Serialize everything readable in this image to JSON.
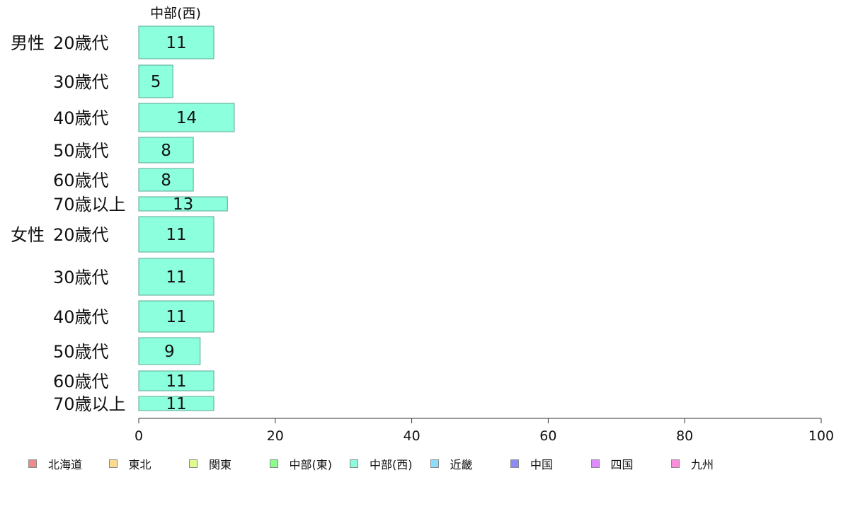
{
  "chart_data": {
    "type": "bar",
    "orientation": "horizontal",
    "title": "中部(西)",
    "xlim": [
      0,
      100
    ],
    "xticks": [
      "0",
      "20",
      "40",
      "60",
      "80",
      "100"
    ],
    "grid": false,
    "legend_position": "bottom",
    "groups": [
      {
        "label": "男性",
        "categories": [
          "20歳代",
          "30歳代",
          "40歳代",
          "50歳代",
          "60歳代",
          "70歳以上"
        ],
        "values": [
          11,
          5,
          14,
          8,
          8,
          13
        ]
      },
      {
        "label": "女性",
        "categories": [
          "20歳代",
          "30歳代",
          "40歳代",
          "50歳代",
          "60歳代",
          "70歳以上"
        ],
        "values": [
          11,
          11,
          11,
          9,
          11,
          11
        ]
      }
    ],
    "series": [
      {
        "name": "中部(西)",
        "color": "#8cffdc"
      }
    ],
    "legend": [
      {
        "name": "北海道",
        "color": "#f08a8a"
      },
      {
        "name": "東北",
        "color": "#fcd98c"
      },
      {
        "name": "関東",
        "color": "#dcfc8c"
      },
      {
        "name": "中部(東)",
        "color": "#8cfc8c"
      },
      {
        "name": "中部(西)",
        "color": "#8cfcdc"
      },
      {
        "name": "近畿",
        "color": "#8cdcfc"
      },
      {
        "name": "中国",
        "color": "#8c8cf8"
      },
      {
        "name": "四国",
        "color": "#dc8cfc"
      },
      {
        "name": "九州",
        "color": "#fc8cdc"
      }
    ]
  }
}
